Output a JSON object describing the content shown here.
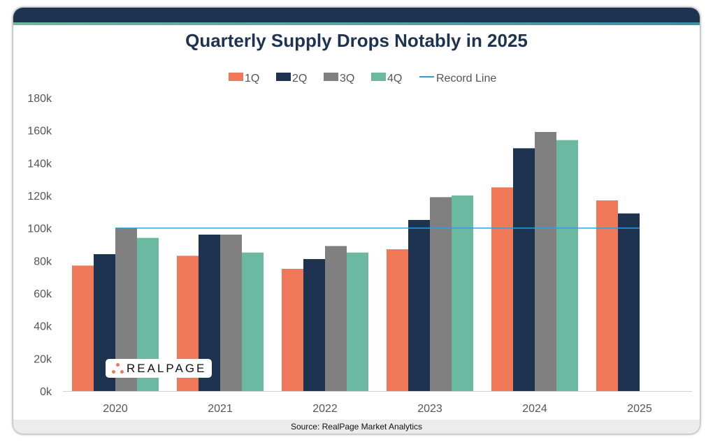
{
  "chart_data": {
    "type": "bar",
    "title": "Quarterly Supply Drops Notably in 2025",
    "categories": [
      "2020",
      "2021",
      "2022",
      "2023",
      "2024",
      "2025"
    ],
    "series": [
      {
        "name": "1Q",
        "color": "#ef7858",
        "values": [
          77,
          83,
          75,
          87,
          125,
          117
        ]
      },
      {
        "name": "2Q",
        "color": "#1e3350",
        "values": [
          84,
          96,
          81,
          105,
          149,
          109
        ]
      },
      {
        "name": "3Q",
        "color": "#808080",
        "values": [
          100,
          96,
          89,
          119,
          159,
          null
        ]
      },
      {
        "name": "4Q",
        "color": "#6ab9a0",
        "values": [
          94,
          85,
          85,
          120,
          154,
          null
        ]
      }
    ],
    "reference_line": {
      "name": "Record Line",
      "value": 100,
      "color": "#3a9ad6"
    },
    "ylim": [
      0,
      180
    ],
    "yticks": [
      "0k",
      "20k",
      "40k",
      "60k",
      "80k",
      "100k",
      "120k",
      "140k",
      "160k",
      "180k"
    ],
    "legend_position": "top",
    "grid": false
  },
  "source": "Source: RealPage Market Analytics",
  "logo_text": "REALPAGE"
}
